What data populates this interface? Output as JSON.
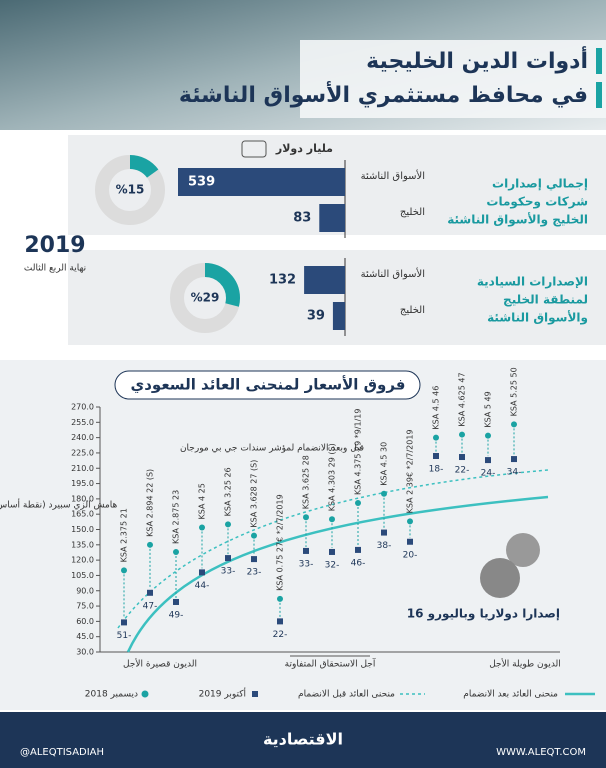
{
  "header": {
    "title_line1": "أدوات الدين الخليجية",
    "title_line2": "في محافظ مستثمري الأسواق الناشئة"
  },
  "unit": "مليار دولار",
  "badge": {
    "year": "2019",
    "subtitle": "نهاية الربع الثالث"
  },
  "panels": [
    {
      "description_lines": [
        "إجمالي إصدارات",
        "شركات وحكومات",
        "الخليج والأسواق الناشئة"
      ],
      "bars": [
        {
          "label": "الأسواق الناشئة",
          "value": 539
        },
        {
          "label": "الخليج",
          "value": 83
        }
      ],
      "donut": {
        "value": 15,
        "label": "%15"
      }
    },
    {
      "description_lines": [
        "الإصدارات السيادية",
        "لمنطقة الخليج",
        "والأسواق الناشئة"
      ],
      "bars": [
        {
          "label": "الأسواق الناشئة",
          "value": 132
        },
        {
          "label": "الخليج",
          "value": 39
        }
      ],
      "donut": {
        "value": 29,
        "label": "%29"
      }
    }
  ],
  "chart_data": {
    "type": "scatter",
    "title": "فروق الأسعار لمنحنى العائد السعودي",
    "y_label": "هامش الزي سبيرد (نقطة أساس)",
    "annotation": "قبل وبعد الانضمام لمؤشر سندات جي بي مورجان",
    "note": "16 إصدارا دولاريا وباليورو",
    "categories": [
      "KSA 2.375 21",
      "KSA 2.894 22 (S)",
      "KSA 2.875 23",
      "KSA 4 25",
      "KSA 3.25 26",
      "KSA 3.628 27 (S)",
      "KSA 0.75 27€ *2/7/2019",
      "KSA 3.625 28",
      "KSA 4.303 29 (S)",
      "KSA 4.375 29 *9/1/19",
      "KSA 4.5 30",
      "KSA 2 39€ *2/7/2019",
      "KSA 4.5 46",
      "KSA 4.625 47",
      "KSA 5 49",
      "KSA 5.25 50"
    ],
    "series": [
      {
        "name": "أكتوبر 2019",
        "color": "#2b4a7a",
        "marker": "square",
        "values": [
          59,
          88,
          79,
          108,
          122,
          121,
          60,
          129,
          128,
          130,
          147,
          138,
          222,
          221,
          218,
          219
        ]
      },
      {
        "name": "ديسمبر 2018",
        "color": "#1aa3a3",
        "marker": "circle",
        "values": [
          110,
          135,
          128,
          152,
          155,
          144,
          82,
          162,
          160,
          176,
          185,
          158,
          240,
          243,
          242,
          253
        ]
      }
    ],
    "changes": {
      "values": [
        -51,
        -47,
        -49,
        -44,
        -33,
        -23,
        -22,
        -33,
        -32,
        -46,
        -38,
        -20,
        -18,
        -22,
        -24,
        -34
      ],
      "value_labels": [
        "51-",
        "47-",
        "49-",
        "44-",
        "33-",
        "23-",
        "22-",
        "33-",
        "32-",
        "46-",
        "38-",
        "20-",
        "18-",
        "22-",
        "24-",
        "34-"
      ]
    },
    "curves": [
      {
        "name": "منحنى العائد بعد الانضمام",
        "color": "#3cc0c0",
        "style": "solid"
      },
      {
        "name": "منحنى العائد قبل الانضمام",
        "color": "#3cc0c0",
        "style": "dashed"
      }
    ],
    "x_labels": [
      "الديون قصيرة الأجل",
      "آجل الاستحقاق المتفاوتة",
      "الديون طويلة الأجل"
    ],
    "ylim": [
      30,
      270
    ],
    "yticks": [
      {
        "value": 30,
        "label": "30.0"
      },
      {
        "value": 45,
        "label": "45.0"
      },
      {
        "value": 60,
        "label": "60.0"
      },
      {
        "value": 75,
        "label": "75.0"
      },
      {
        "value": 90,
        "label": "90.0"
      },
      {
        "value": 105,
        "label": "105.0"
      },
      {
        "value": 120,
        "label": "120.0"
      },
      {
        "value": 135,
        "label": "135.0"
      },
      {
        "value": 150,
        "label": "150.0"
      },
      {
        "value": 165,
        "label": "165.0"
      },
      {
        "value": 180,
        "label": "180.0"
      },
      {
        "value": 195,
        "label": "195.0"
      },
      {
        "value": 210,
        "label": "210.0"
      },
      {
        "value": 225,
        "label": "225.0"
      },
      {
        "value": 240,
        "label": "240.0"
      },
      {
        "value": 255,
        "label": "255.0"
      },
      {
        "value": 270,
        "label": "270.0"
      }
    ]
  },
  "footer": {
    "social": "@ALEQTISADIAH",
    "logo": "الاقتصادية",
    "website": "WWW.ALEQT.COM"
  }
}
